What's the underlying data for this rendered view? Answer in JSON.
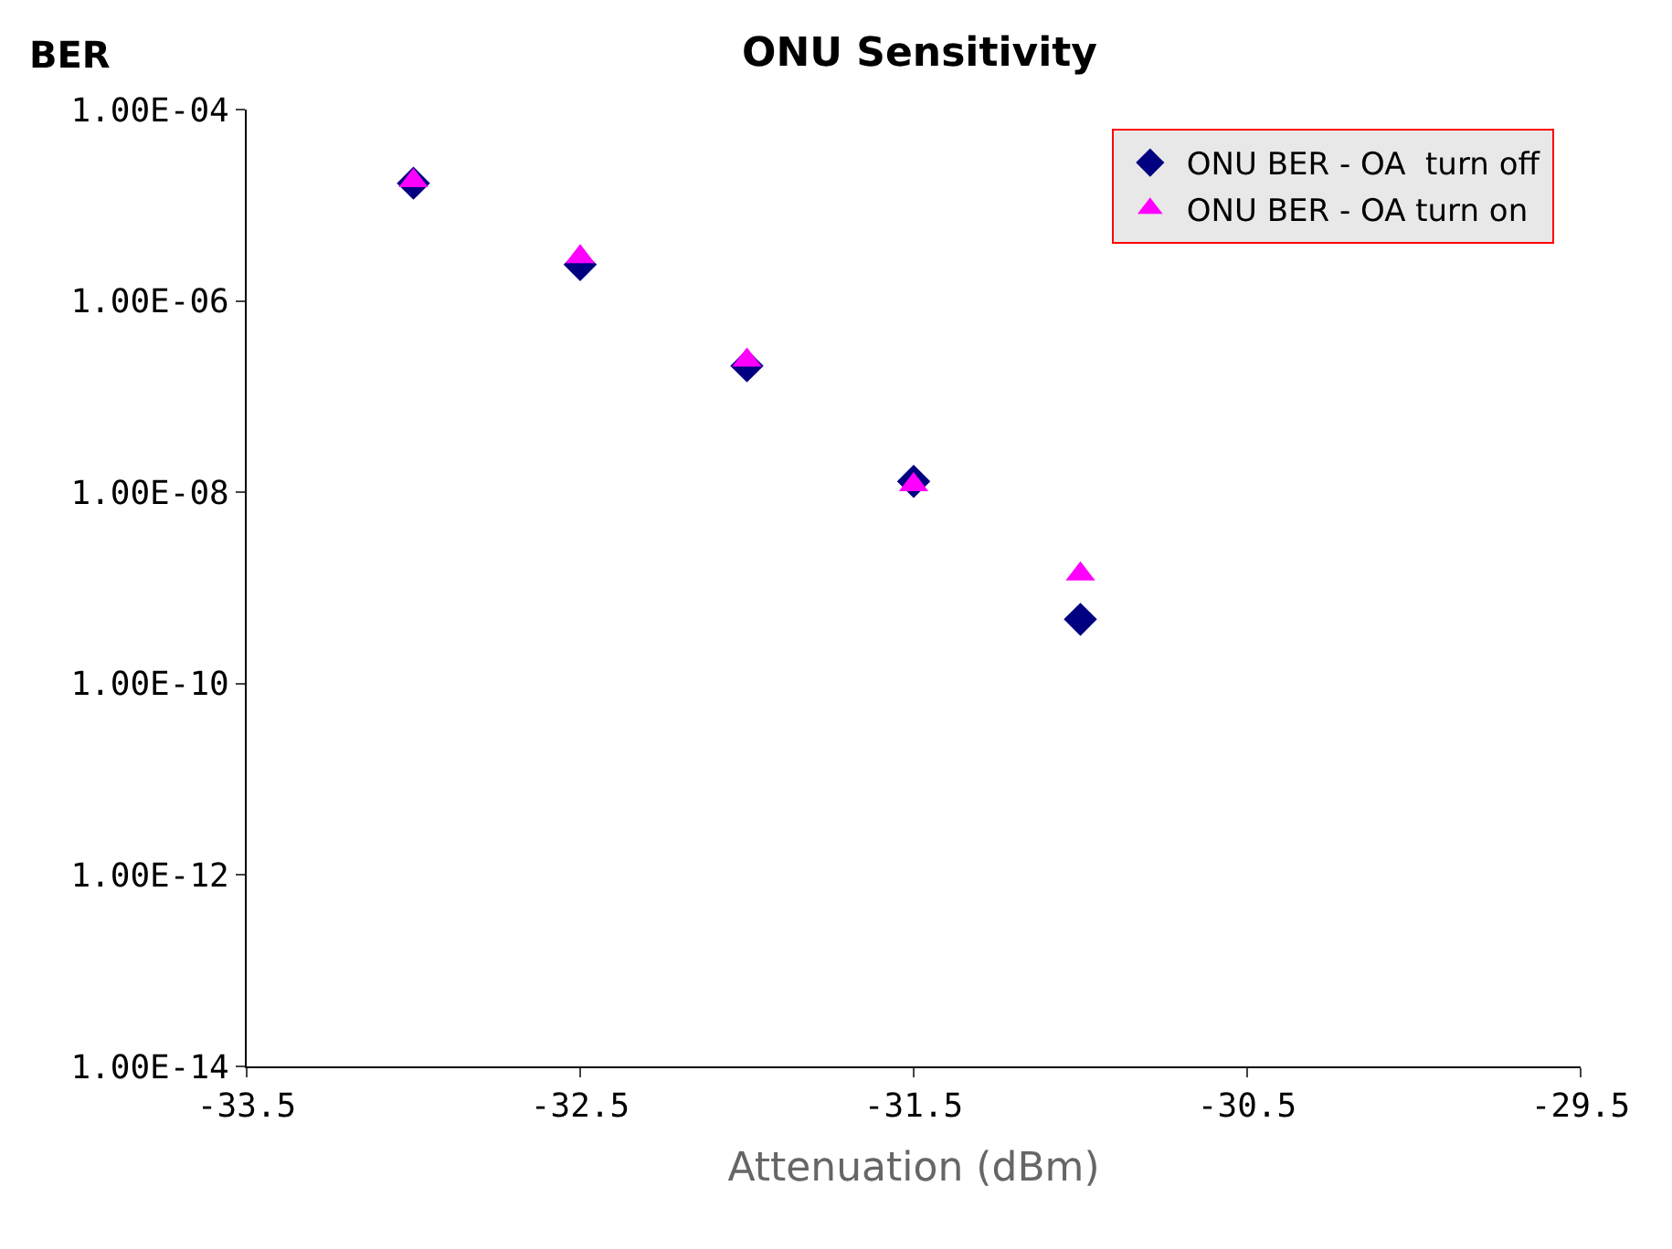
{
  "chart_data": {
    "type": "scatter",
    "title": "ONU Sensitivity",
    "xlabel": "Attenuation (dBm)",
    "ylabel": "BER",
    "x": [
      -33,
      -32.5,
      -32,
      -31.5,
      -31
    ],
    "series": [
      {
        "name": "ONU BER - OA  turn off",
        "color": "#000080",
        "marker": "diamond",
        "values": [
          1.7e-05,
          2.4e-06,
          2.1e-07,
          1.3e-08,
          4.7e-10
        ]
      },
      {
        "name": "ONU BER - OA turn on",
        "color": "#ff00ff",
        "marker": "triangle",
        "values": [
          1.8e-05,
          2.9e-06,
          2.4e-07,
          1.2e-08,
          1.4e-09
        ]
      }
    ],
    "log": "y",
    "xlim": [
      -33.5,
      -29.5
    ],
    "xticks": [
      -33.5,
      -32.5,
      -31.5,
      -30.5,
      -29.5
    ],
    "ylim": [
      1e-14,
      0.0001
    ],
    "yticks": [
      {
        "value": 1e-14,
        "label": "1.00E-14"
      },
      {
        "value": 1e-12,
        "label": "1.00E-12"
      },
      {
        "value": 1e-10,
        "label": "1.00E-10"
      },
      {
        "value": 1e-08,
        "label": "1.00E-08"
      },
      {
        "value": 1e-06,
        "label": "1.00E-06"
      },
      {
        "value": 0.0001,
        "label": "1.00E-04"
      }
    ],
    "legend": "top right"
  }
}
